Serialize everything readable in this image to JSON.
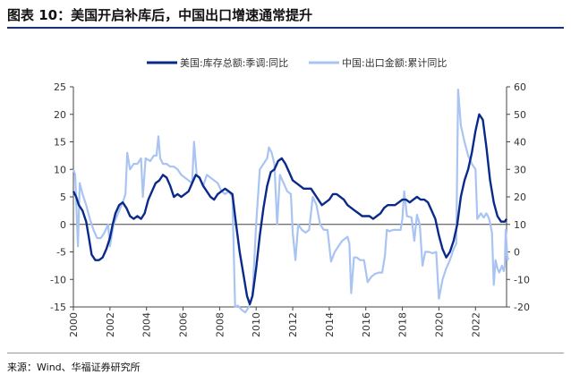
{
  "title": "图表 10：美国开启补库后，中国出口增速通常提升",
  "source": "来源：Wind、华福证券研究所",
  "colors": {
    "us": "#0a2a8a",
    "cn": "#a9c4f2",
    "rule": "#1a2f7a"
  },
  "chart_data": {
    "type": "line",
    "legend_position": "top-center",
    "grid": false,
    "x_range": [
      2000,
      2023.7
    ],
    "x_ticks": [
      "2000",
      "2002",
      "2004",
      "2006",
      "2008",
      "2010",
      "2012",
      "2014",
      "2016",
      "2018",
      "2020",
      "2022"
    ],
    "y_left": {
      "range": [
        -15,
        25
      ],
      "ticks": [
        "25",
        "20",
        "15",
        "10",
        "5",
        "0",
        "-5",
        "-10",
        "-15"
      ]
    },
    "y_right": {
      "range": [
        -20,
        60
      ],
      "ticks": [
        "60",
        "50",
        "40",
        "30",
        "20",
        "10",
        "0",
        "-10",
        "-20"
      ]
    },
    "series": [
      {
        "name": "美国:库存总额:季调:同比",
        "axis": "left",
        "points": [
          [
            2000.0,
            6.0
          ],
          [
            2000.15,
            5.0
          ],
          [
            2000.3,
            3.5
          ],
          [
            2000.5,
            2.5
          ],
          [
            2000.7,
            0.5
          ],
          [
            2000.85,
            -2.5
          ],
          [
            2001.0,
            -5.5
          ],
          [
            2001.2,
            -6.5
          ],
          [
            2001.4,
            -6.5
          ],
          [
            2001.6,
            -6.0
          ],
          [
            2001.8,
            -4.5
          ],
          [
            2002.0,
            -2.5
          ],
          [
            2002.15,
            0.0
          ],
          [
            2002.3,
            2.0
          ],
          [
            2002.5,
            3.5
          ],
          [
            2002.7,
            4.0
          ],
          [
            2002.9,
            3.0
          ],
          [
            2003.1,
            1.5
          ],
          [
            2003.3,
            1.0
          ],
          [
            2003.5,
            1.5
          ],
          [
            2003.7,
            1.0
          ],
          [
            2003.9,
            2.0
          ],
          [
            2004.1,
            4.5
          ],
          [
            2004.3,
            6.0
          ],
          [
            2004.5,
            7.5
          ],
          [
            2004.7,
            8.0
          ],
          [
            2004.9,
            9.0
          ],
          [
            2005.1,
            8.5
          ],
          [
            2005.3,
            7.0
          ],
          [
            2005.5,
            5.0
          ],
          [
            2005.7,
            5.5
          ],
          [
            2005.9,
            5.0
          ],
          [
            2006.1,
            5.5
          ],
          [
            2006.3,
            6.0
          ],
          [
            2006.5,
            7.5
          ],
          [
            2006.7,
            9.0
          ],
          [
            2006.9,
            8.5
          ],
          [
            2007.1,
            7.0
          ],
          [
            2007.3,
            6.0
          ],
          [
            2007.5,
            5.0
          ],
          [
            2007.7,
            4.5
          ],
          [
            2007.9,
            5.5
          ],
          [
            2008.1,
            6.0
          ],
          [
            2008.3,
            6.5
          ],
          [
            2008.5,
            6.0
          ],
          [
            2008.7,
            5.5
          ],
          [
            2008.9,
            0.0
          ],
          [
            2009.1,
            -5.0
          ],
          [
            2009.3,
            -9.0
          ],
          [
            2009.5,
            -13.0
          ],
          [
            2009.65,
            -14.5
          ],
          [
            2009.8,
            -13.0
          ],
          [
            2010.0,
            -8.0
          ],
          [
            2010.2,
            -2.0
          ],
          [
            2010.4,
            3.0
          ],
          [
            2010.6,
            7.0
          ],
          [
            2010.8,
            9.5
          ],
          [
            2011.0,
            10.0
          ],
          [
            2011.2,
            11.5
          ],
          [
            2011.4,
            12.0
          ],
          [
            2011.6,
            11.0
          ],
          [
            2011.8,
            9.5
          ],
          [
            2012.0,
            8.0
          ],
          [
            2012.2,
            7.5
          ],
          [
            2012.4,
            7.0
          ],
          [
            2012.6,
            6.5
          ],
          [
            2012.8,
            6.5
          ],
          [
            2013.0,
            6.5
          ],
          [
            2013.2,
            5.5
          ],
          [
            2013.4,
            4.5
          ],
          [
            2013.6,
            3.5
          ],
          [
            2013.8,
            4.0
          ],
          [
            2014.0,
            4.5
          ],
          [
            2014.2,
            5.5
          ],
          [
            2014.4,
            5.5
          ],
          [
            2014.6,
            5.0
          ],
          [
            2014.8,
            4.5
          ],
          [
            2015.0,
            3.5
          ],
          [
            2015.2,
            3.0
          ],
          [
            2015.4,
            2.5
          ],
          [
            2015.6,
            2.0
          ],
          [
            2015.8,
            1.5
          ],
          [
            2016.0,
            1.5
          ],
          [
            2016.2,
            1.5
          ],
          [
            2016.4,
            1.0
          ],
          [
            2016.6,
            1.5
          ],
          [
            2016.8,
            2.0
          ],
          [
            2017.0,
            3.0
          ],
          [
            2017.2,
            3.5
          ],
          [
            2017.4,
            3.5
          ],
          [
            2017.6,
            3.5
          ],
          [
            2017.8,
            4.0
          ],
          [
            2018.0,
            4.5
          ],
          [
            2018.2,
            4.5
          ],
          [
            2018.4,
            4.0
          ],
          [
            2018.6,
            4.5
          ],
          [
            2018.8,
            5.0
          ],
          [
            2019.0,
            4.5
          ],
          [
            2019.2,
            4.5
          ],
          [
            2019.4,
            4.0
          ],
          [
            2019.6,
            2.5
          ],
          [
            2019.8,
            1.0
          ],
          [
            2020.0,
            -2.0
          ],
          [
            2020.2,
            -4.5
          ],
          [
            2020.4,
            -6.0
          ],
          [
            2020.6,
            -5.0
          ],
          [
            2020.8,
            -3.0
          ],
          [
            2021.0,
            0.0
          ],
          [
            2021.2,
            5.0
          ],
          [
            2021.4,
            8.0
          ],
          [
            2021.6,
            10.0
          ],
          [
            2021.8,
            13.0
          ],
          [
            2022.0,
            17.0
          ],
          [
            2022.2,
            20.0
          ],
          [
            2022.4,
            19.0
          ],
          [
            2022.6,
            14.0
          ],
          [
            2022.8,
            8.0
          ],
          [
            2023.0,
            4.0
          ],
          [
            2023.2,
            1.5
          ],
          [
            2023.4,
            0.5
          ],
          [
            2023.6,
            0.5
          ],
          [
            2023.7,
            1.0
          ]
        ]
      },
      {
        "name": "中国:出口金额:累计同比",
        "axis": "right",
        "points": [
          [
            2000.0,
            30.0
          ],
          [
            2000.1,
            28.0
          ],
          [
            2000.25,
            2.0
          ],
          [
            2000.35,
            25.0
          ],
          [
            2000.5,
            21.0
          ],
          [
            2000.7,
            17.0
          ],
          [
            2000.9,
            12.0
          ],
          [
            2001.1,
            8.0
          ],
          [
            2001.3,
            5.0
          ],
          [
            2001.5,
            5.0
          ],
          [
            2001.7,
            7.0
          ],
          [
            2001.9,
            10.0
          ],
          [
            2002.0,
            2.0
          ],
          [
            2002.2,
            10.0
          ],
          [
            2002.5,
            15.0
          ],
          [
            2002.7,
            18.0
          ],
          [
            2002.85,
            21.0
          ],
          [
            2002.95,
            36.0
          ],
          [
            2003.1,
            30.0
          ],
          [
            2003.3,
            32.0
          ],
          [
            2003.5,
            32.0
          ],
          [
            2003.7,
            34.0
          ],
          [
            2003.8,
            20.0
          ],
          [
            2003.95,
            34.0
          ],
          [
            2004.2,
            33.0
          ],
          [
            2004.4,
            35.0
          ],
          [
            2004.55,
            35.0
          ],
          [
            2004.65,
            42.0
          ],
          [
            2004.75,
            34.0
          ],
          [
            2004.9,
            32.0
          ],
          [
            2005.1,
            32.0
          ],
          [
            2005.3,
            31.0
          ],
          [
            2005.5,
            31.0
          ],
          [
            2005.7,
            30.0
          ],
          [
            2005.9,
            28.0
          ],
          [
            2006.1,
            27.0
          ],
          [
            2006.3,
            26.0
          ],
          [
            2006.5,
            25.0
          ],
          [
            2006.6,
            40.0
          ],
          [
            2006.75,
            28.0
          ],
          [
            2006.9,
            27.0
          ],
          [
            2007.1,
            24.0
          ],
          [
            2007.3,
            28.0
          ],
          [
            2007.5,
            27.0
          ],
          [
            2007.7,
            26.0
          ],
          [
            2007.9,
            25.0
          ],
          [
            2008.1,
            22.0
          ],
          [
            2008.3,
            21.0
          ],
          [
            2008.5,
            22.0
          ],
          [
            2008.7,
            20.0
          ],
          [
            2008.85,
            -20.0
          ],
          [
            2009.0,
            -19.5
          ],
          [
            2009.2,
            -21.0
          ],
          [
            2009.4,
            -22.0
          ],
          [
            2009.6,
            -20.0
          ],
          [
            2009.8,
            -16.0
          ],
          [
            2010.0,
            10.0
          ],
          [
            2010.2,
            30.0
          ],
          [
            2010.4,
            32.0
          ],
          [
            2010.6,
            34.0
          ],
          [
            2010.7,
            38.0
          ],
          [
            2010.85,
            36.0
          ],
          [
            2011.0,
            32.0
          ],
          [
            2011.15,
            10.0
          ],
          [
            2011.3,
            28.0
          ],
          [
            2011.5,
            25.0
          ],
          [
            2011.7,
            22.0
          ],
          [
            2011.9,
            21.0
          ],
          [
            2012.0,
            7.0
          ],
          [
            2012.15,
            -3.0
          ],
          [
            2012.3,
            10.0
          ],
          [
            2012.5,
            8.0
          ],
          [
            2012.7,
            7.0
          ],
          [
            2012.9,
            8.0
          ],
          [
            2013.1,
            20.0
          ],
          [
            2013.3,
            17.0
          ],
          [
            2013.5,
            10.0
          ],
          [
            2013.7,
            8.0
          ],
          [
            2013.9,
            8.0
          ],
          [
            2014.1,
            -3.5
          ],
          [
            2014.3,
            0.0
          ],
          [
            2014.5,
            2.0
          ],
          [
            2014.7,
            4.0
          ],
          [
            2014.9,
            5.0
          ],
          [
            2015.0,
            5.5
          ],
          [
            2015.1,
            3.0
          ],
          [
            2015.2,
            -15.0
          ],
          [
            2015.35,
            -2.0
          ],
          [
            2015.5,
            -2.0
          ],
          [
            2015.7,
            -3.0
          ],
          [
            2015.9,
            -3.0
          ],
          [
            2016.1,
            -11.0
          ],
          [
            2016.3,
            -9.0
          ],
          [
            2016.5,
            -8.0
          ],
          [
            2016.7,
            -7.5
          ],
          [
            2016.9,
            -7.5
          ],
          [
            2017.05,
            -1.0
          ],
          [
            2017.15,
            8.0
          ],
          [
            2017.3,
            7.5
          ],
          [
            2017.5,
            8.0
          ],
          [
            2017.7,
            8.0
          ],
          [
            2017.9,
            8.0
          ],
          [
            2018.0,
            12.0
          ],
          [
            2018.1,
            22.0
          ],
          [
            2018.25,
            13.0
          ],
          [
            2018.5,
            12.5
          ],
          [
            2018.65,
            4.0
          ],
          [
            2018.8,
            13.5
          ],
          [
            2018.95,
            10.0
          ],
          [
            2019.1,
            -5.0
          ],
          [
            2019.25,
            0.0
          ],
          [
            2019.45,
            0.0
          ],
          [
            2019.65,
            -0.5
          ],
          [
            2019.85,
            0.0
          ],
          [
            2020.0,
            -17.0
          ],
          [
            2020.2,
            -10.0
          ],
          [
            2020.4,
            -6.0
          ],
          [
            2020.6,
            -3.0
          ],
          [
            2020.8,
            1.0
          ],
          [
            2020.95,
            3.0
          ],
          [
            2021.05,
            59.0
          ],
          [
            2021.2,
            46.0
          ],
          [
            2021.4,
            40.0
          ],
          [
            2021.6,
            35.0
          ],
          [
            2021.8,
            32.0
          ],
          [
            2022.0,
            30.0
          ],
          [
            2022.1,
            12.0
          ],
          [
            2022.3,
            14.0
          ],
          [
            2022.45,
            12.5
          ],
          [
            2022.6,
            14.0
          ],
          [
            2022.75,
            12.0
          ],
          [
            2022.9,
            7.0
          ],
          [
            2023.0,
            -12.0
          ],
          [
            2023.1,
            -3.0
          ],
          [
            2023.2,
            -6.0
          ],
          [
            2023.3,
            -7.5
          ],
          [
            2023.45,
            -5.0
          ],
          [
            2023.55,
            -7.0
          ],
          [
            2023.6,
            -5.0
          ],
          [
            2023.65,
            8.0
          ],
          [
            2023.7,
            3.0
          ],
          [
            2023.75,
            -3.0
          ],
          [
            2023.8,
            -2.0
          ]
        ]
      }
    ]
  }
}
